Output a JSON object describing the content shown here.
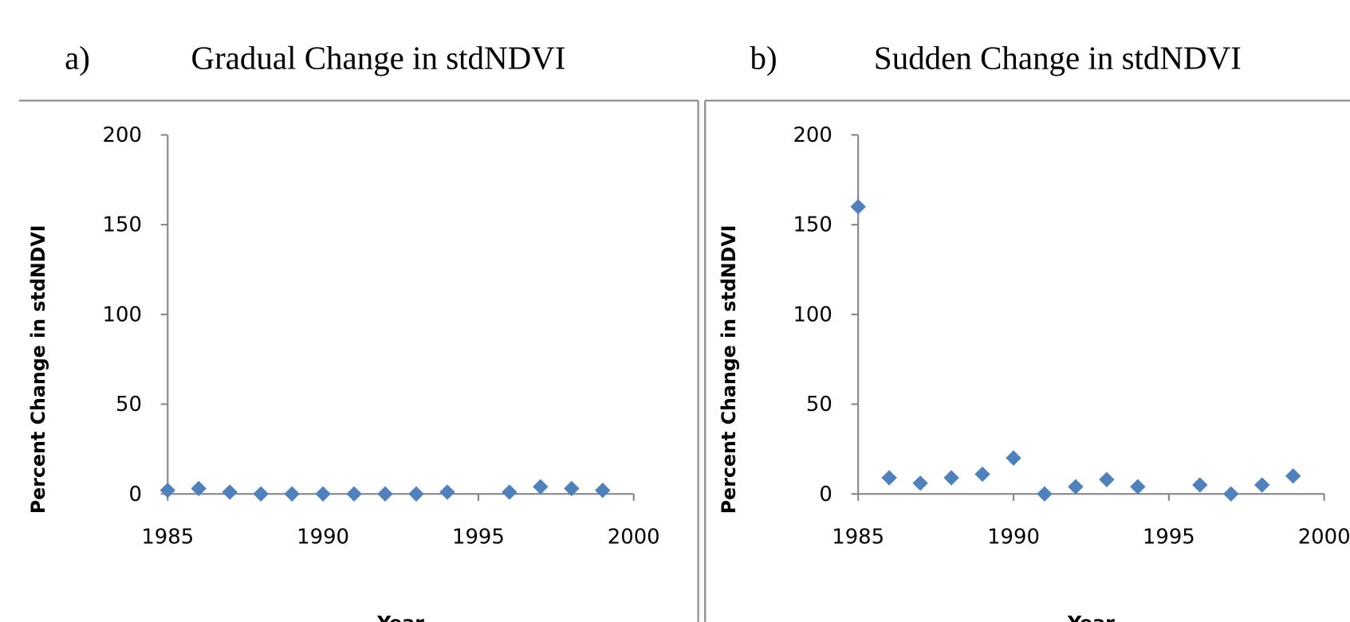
{
  "chart_data": [
    {
      "type": "scatter",
      "panel_label": "a)",
      "title": "Gradual Change in stdNDVI",
      "xlabel": "Year",
      "ylabel": "Percent Change in stdNDVI",
      "x": [
        1985,
        1986,
        1987,
        1988,
        1989,
        1990,
        1991,
        1992,
        1993,
        1994,
        1996,
        1997,
        1998,
        1999
      ],
      "values": [
        2,
        3,
        1,
        0,
        0,
        0,
        0,
        0,
        0,
        1,
        1,
        4,
        3,
        2
      ],
      "color": "#4f81bd",
      "xlim": [
        1985,
        2000
      ],
      "xticks": [
        1985,
        1990,
        1995,
        2000
      ],
      "ylim": [
        0,
        200
      ],
      "yticks": [
        0,
        50,
        100,
        150,
        200
      ]
    },
    {
      "type": "scatter",
      "panel_label": "b)",
      "title": "Sudden Change in stdNDVI",
      "xlabel": "Year",
      "ylabel": "Percent Change in stdNDVI",
      "x": [
        1985,
        1986,
        1987,
        1988,
        1989,
        1990,
        1991,
        1992,
        1993,
        1994,
        1996,
        1997,
        1998,
        1999
      ],
      "values": [
        160,
        9,
        6,
        9,
        11,
        20,
        0,
        4,
        8,
        4,
        5,
        0,
        5,
        10
      ],
      "color": "#4f81bd",
      "xlim": [
        1985,
        2000
      ],
      "xticks": [
        1985,
        1990,
        1995,
        2000
      ],
      "ylim": [
        0,
        200
      ],
      "yticks": [
        0,
        50,
        100,
        150,
        200
      ]
    }
  ]
}
